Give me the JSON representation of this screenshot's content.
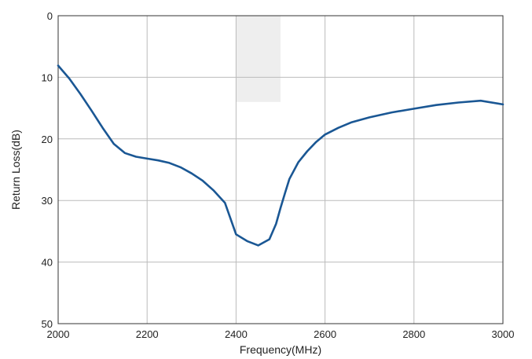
{
  "chart_data": {
    "type": "line",
    "title": "",
    "xlabel": "Frequency(MHz)",
    "ylabel": "Return Loss(dB)",
    "xlim": [
      2000,
      3000
    ],
    "ylim": [
      0,
      50
    ],
    "y_inverted": true,
    "grid": true,
    "x_ticks": [
      2000,
      2200,
      2400,
      2600,
      2800,
      3000
    ],
    "y_ticks": [
      0,
      10,
      20,
      30,
      40,
      50
    ],
    "x_tick_labels": [
      "2000",
      "2200",
      "2400",
      "2600",
      "2800",
      "3000"
    ],
    "y_tick_labels": [
      "0",
      "10",
      "20",
      "30",
      "40",
      "50"
    ],
    "highlight_band": {
      "x_from": 2400,
      "x_to": 2500,
      "y_from": 0,
      "y_to": 14,
      "color": "#eeeeee"
    },
    "series": [
      {
        "color": "#1a5794",
        "x": [
          2000,
          2025,
          2050,
          2075,
          2100,
          2125,
          2150,
          2175,
          2200,
          2225,
          2250,
          2275,
          2300,
          2325,
          2350,
          2375,
          2400,
          2425,
          2450,
          2475,
          2490,
          2500,
          2510,
          2520,
          2540,
          2560,
          2580,
          2600,
          2630,
          2660,
          2700,
          2750,
          2800,
          2850,
          2900,
          2950,
          3000
        ],
        "values": [
          8.1,
          10.2,
          12.7,
          15.4,
          18.2,
          20.8,
          22.3,
          22.9,
          23.2,
          23.5,
          23.9,
          24.6,
          25.6,
          26.8,
          28.4,
          30.4,
          35.5,
          36.6,
          37.3,
          36.3,
          33.8,
          31.2,
          28.8,
          26.5,
          23.8,
          22.0,
          20.5,
          19.3,
          18.2,
          17.3,
          16.5,
          15.7,
          15.1,
          14.5,
          14.1,
          13.8,
          14.4
        ]
      }
    ],
    "series_colors": [
      "#1a5794"
    ]
  }
}
